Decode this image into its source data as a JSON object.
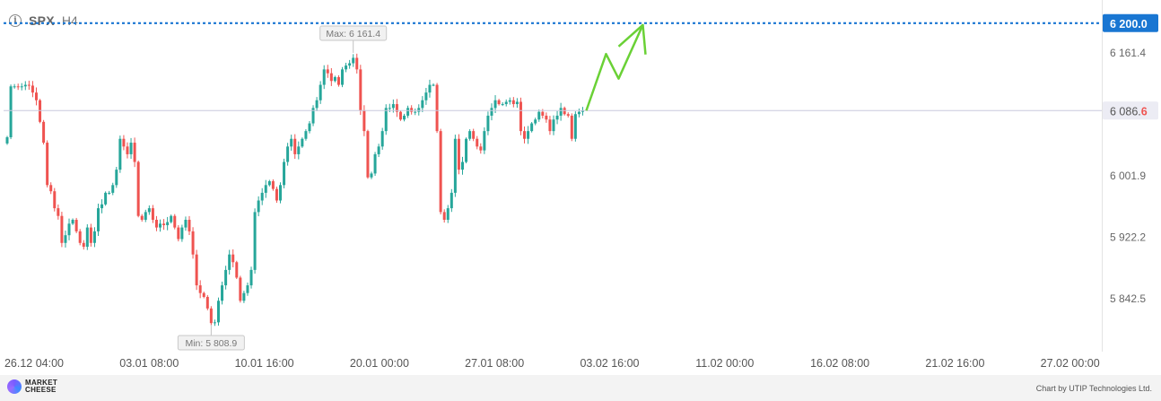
{
  "header": {
    "symbol": "SPX",
    "timeframe": "H4"
  },
  "footer": {
    "brand_line1": "MARKET",
    "brand_line2": "CHEESE",
    "credit": "Chart by UTIP Technologies Ltd."
  },
  "colors": {
    "up": "#26a69a",
    "down": "#ef5350",
    "target": "#1976d2",
    "arrow": "#6ad136"
  },
  "chart_data": {
    "type": "candlestick",
    "symbol": "SPX",
    "timeframe": "H4",
    "y_ticks": [
      "6 161.4",
      "6 001.9",
      "5 922.2",
      "5 842.5"
    ],
    "x_ticks": [
      "26.12 04:00",
      "03.01 08:00",
      "10.01 16:00",
      "20.01 00:00",
      "27.01 08:00",
      "03.02 16:00",
      "11.02 00:00",
      "16.02 08:00",
      "21.02 16:00",
      "27.02 00:00"
    ],
    "ylim": [
      5774,
      6230
    ],
    "target": {
      "label": "6 200.0",
      "value": 6200.0
    },
    "current": {
      "label_main": "6 086.",
      "label_last": "6",
      "value": 6086.6
    },
    "max_marker": {
      "label": "Max: 6 161.4",
      "value": 6161.4,
      "index": 95
    },
    "min_marker": {
      "label": "Min: 5 808.9",
      "value": 5808.9,
      "index": 56
    },
    "close": [
      6052,
      6118,
      6118,
      6117,
      6118,
      6120,
      6119,
      6110,
      6100,
      6072,
      6045,
      5990,
      5982,
      5960,
      5950,
      5915,
      5925,
      5940,
      5945,
      5930,
      5915,
      5910,
      5935,
      5915,
      5930,
      5960,
      5965,
      5980,
      5980,
      5990,
      6010,
      6050,
      6040,
      6030,
      6045,
      6020,
      5950,
      5945,
      5955,
      5960,
      5945,
      5935,
      5940,
      5938,
      5942,
      5950,
      5935,
      5920,
      5935,
      5945,
      5930,
      5900,
      5860,
      5850,
      5845,
      5830,
      5811,
      5812,
      5840,
      5860,
      5880,
      5900,
      5890,
      5870,
      5840,
      5850,
      5860,
      5880,
      5955,
      5970,
      5980,
      5990,
      5995,
      5985,
      5970,
      5990,
      6020,
      6040,
      6050,
      6030,
      6040,
      6050,
      6060,
      6070,
      6090,
      6100,
      6120,
      6140,
      6135,
      6125,
      6130,
      6120,
      6140,
      6145,
      6148,
      6155,
      6140,
      6087,
      6060,
      6000,
      6005,
      6030,
      6040,
      6060,
      6090,
      6090,
      6095,
      6085,
      6075,
      6080,
      6090,
      6085,
      6085,
      6090,
      6100,
      6110,
      6120,
      6120,
      6060,
      5955,
      5945,
      5960,
      5980,
      6050,
      6010,
      6020,
      6050,
      6060,
      6050,
      6040,
      6035,
      6060,
      6080,
      6090,
      6100,
      6095,
      6095,
      6098,
      6100,
      6095,
      6098,
      6060,
      6050,
      6060,
      6070,
      6075,
      6085,
      6080,
      6075,
      6060,
      6075,
      6080,
      6090,
      6082,
      6080,
      6050,
      6082,
      6085,
      6086.6
    ]
  }
}
